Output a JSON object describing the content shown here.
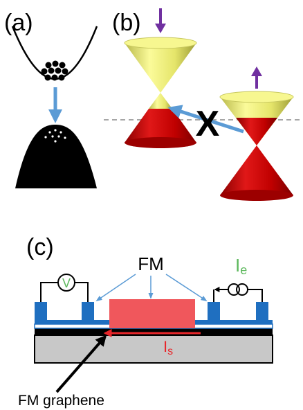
{
  "panels": {
    "a": {
      "label": "(a)"
    },
    "b": {
      "label": "(b)",
      "blocked_mark": "X"
    },
    "c": {
      "label": "(c)",
      "fm_label": "FM",
      "voltmeter_symbol": "V",
      "current_e_main": "I",
      "current_e_sub": "e",
      "current_s_main": "I",
      "current_s_sub": "s",
      "graphene_label": "FM graphene"
    }
  },
  "colors": {
    "band": "#000000",
    "arrow_blue": "#5b9bd5",
    "spin_arrow": "#7030a0",
    "cone_yellow": "#f0f07a",
    "cone_red": "#c00000",
    "electrode_blue": "#1f6fc0",
    "fm_pink": "#f0575c",
    "substrate_gray": "#c8c8c8",
    "current_red": "#e8262a",
    "current_green": "#5cb85c"
  }
}
